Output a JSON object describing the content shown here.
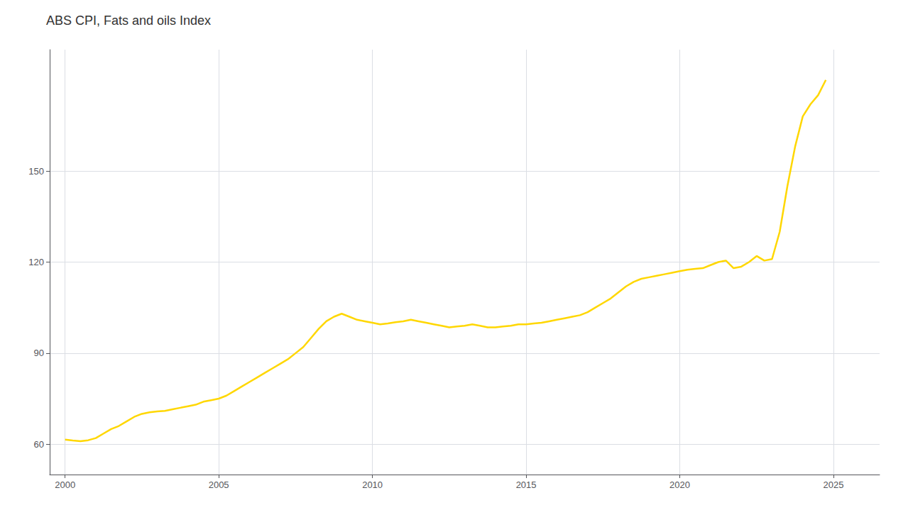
{
  "chart_data": {
    "type": "line",
    "title": "ABS CPI, Fats and oils Index",
    "color": "#FFD700",
    "grid": true,
    "xlim": [
      1999.5,
      2026.5
    ],
    "xticks": [
      2000,
      2005,
      2010,
      2015,
      2020,
      2025
    ],
    "ylim": [
      50,
      190
    ],
    "yticks": [
      60,
      90,
      120,
      150
    ],
    "x": [
      2000.0,
      2000.25,
      2000.5,
      2000.75,
      2001.0,
      2001.25,
      2001.5,
      2001.75,
      2002.0,
      2002.25,
      2002.5,
      2002.75,
      2003.0,
      2003.25,
      2003.5,
      2003.75,
      2004.0,
      2004.25,
      2004.5,
      2004.75,
      2005.0,
      2005.25,
      2005.5,
      2005.75,
      2006.0,
      2006.25,
      2006.5,
      2006.75,
      2007.0,
      2007.25,
      2007.5,
      2007.75,
      2008.0,
      2008.25,
      2008.5,
      2008.75,
      2009.0,
      2009.25,
      2009.5,
      2009.75,
      2010.0,
      2010.25,
      2010.5,
      2010.75,
      2011.0,
      2011.25,
      2011.5,
      2011.75,
      2012.0,
      2012.25,
      2012.5,
      2012.75,
      2013.0,
      2013.25,
      2013.5,
      2013.75,
      2014.0,
      2014.25,
      2014.5,
      2014.75,
      2015.0,
      2015.25,
      2015.5,
      2015.75,
      2016.0,
      2016.25,
      2016.5,
      2016.75,
      2017.0,
      2017.25,
      2017.5,
      2017.75,
      2018.0,
      2018.25,
      2018.5,
      2018.75,
      2019.0,
      2019.25,
      2019.5,
      2019.75,
      2020.0,
      2020.25,
      2020.5,
      2020.75,
      2021.0,
      2021.25,
      2021.5,
      2021.75,
      2022.0,
      2022.25,
      2022.5,
      2022.75,
      2023.0,
      2023.25,
      2023.5,
      2023.75,
      2024.0,
      2024.25,
      2024.5,
      2024.75
    ],
    "values": [
      61.5,
      61.2,
      61.0,
      61.3,
      62.0,
      63.5,
      65.0,
      66.0,
      67.5,
      69.0,
      70.0,
      70.5,
      70.8,
      71.0,
      71.5,
      72.0,
      72.5,
      73.0,
      74.0,
      74.5,
      75.0,
      76.0,
      77.5,
      79.0,
      80.5,
      82.0,
      83.5,
      85.0,
      86.5,
      88.0,
      90.0,
      92.0,
      95.0,
      98.0,
      100.5,
      102.0,
      103.0,
      102.0,
      101.0,
      100.5,
      100.0,
      99.5,
      99.8,
      100.2,
      100.5,
      101.0,
      100.5,
      100.0,
      99.5,
      99.0,
      98.5,
      98.8,
      99.0,
      99.5,
      99.0,
      98.5,
      98.5,
      98.8,
      99.0,
      99.5,
      99.5,
      99.8,
      100.0,
      100.5,
      101.0,
      101.5,
      102.0,
      102.5,
      103.5,
      105.0,
      106.5,
      108.0,
      110.0,
      112.0,
      113.5,
      114.5,
      115.0,
      115.5,
      116.0,
      116.5,
      117.0,
      117.5,
      117.8,
      118.0,
      119.0,
      120.0,
      120.5,
      118.0,
      118.5,
      120.0,
      122.0,
      120.5,
      121.0,
      130.0,
      145.0,
      158.0,
      168.0,
      172.0,
      175.0,
      180.0
    ]
  }
}
